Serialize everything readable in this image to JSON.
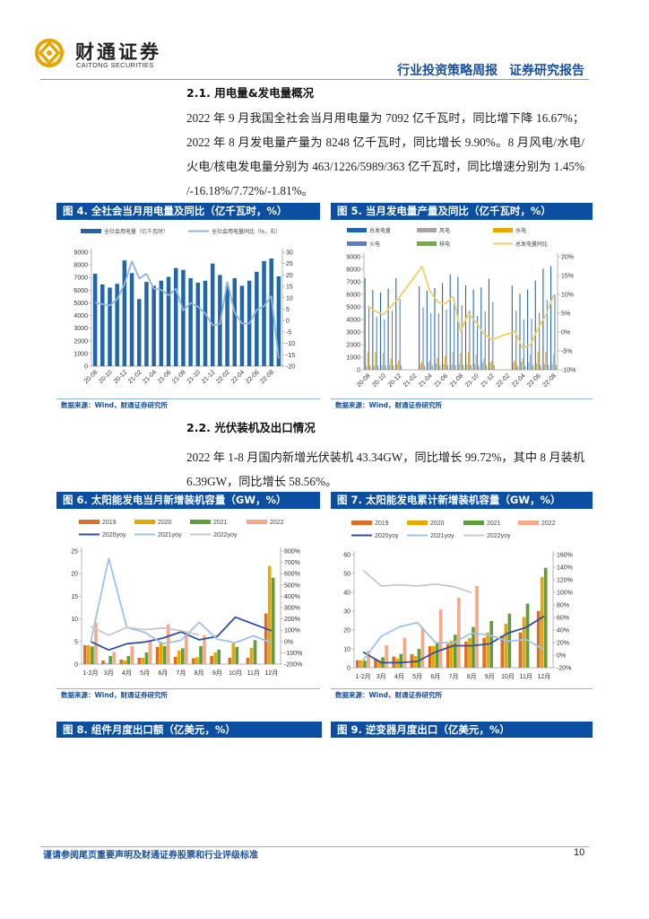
{
  "header": {
    "logo_cn": "财通证券",
    "logo_en": "CAITONG SECURITIES",
    "report_type": "行业投资策略周报",
    "report_category": "证券研究报告",
    "brand_color": "#e8a500",
    "accent_color": "#0b4ea2"
  },
  "section_1": {
    "heading": "2.1.  用电量&发电量概况",
    "paragraph": "2022 年 9 月我国全社会当月用电量为 7092 亿千瓦时，同比增下降 16.67%；2022 年 8 月发电量产量为 8248 亿千瓦时，同比增长 9.90%。8 月风电/水电/火电/核电发电量分别为 463/1226/5989/363 亿千瓦时，同比增速分别为 1.45% /-16.18%/7.72%/-1.81%。"
  },
  "section_2": {
    "heading": "2.2.  光伏装机及出口情况",
    "paragraph": "2022 年 1-8 月国内新增光伏装机 43.34GW，同比增长 99.72%，其中 8 月装机 6.39GW，同比增长 58.56%。"
  },
  "figures": {
    "fig4_title": "图 4.  全社会当月用电量及同比（亿千瓦时，%）",
    "fig5_title": "图 5.  当月发电量产量及同比（亿千瓦时，%）",
    "fig6_title": "图 6.  太阳能发电当月新增装机容量（GW，%）",
    "fig7_title": "图 7.  太阳能发电累计新增装机容量（GW，%）",
    "fig8_title": "图 8.  组件月度出口额（亿美元，%）",
    "fig9_title": "图 9.  逆变器月度出口（亿美元，%）",
    "source": "数据来源：Wind，财通证券研究所"
  },
  "chart_data": [
    {
      "type": "bar+line",
      "categories": [
        "20-08",
        "20-09",
        "20-10",
        "20-11",
        "20-12",
        "21-01",
        "21-02",
        "21-03",
        "21-04",
        "21-05",
        "21-06",
        "21-07",
        "21-08",
        "21-09",
        "21-10",
        "21-11",
        "21-12",
        "22-01",
        "22-02",
        "22-03",
        "22-04",
        "22-05",
        "22-06",
        "22-07",
        "22-08",
        "22-09"
      ],
      "ylim": [
        0,
        9000
      ],
      "y2lim": [
        -20,
        30
      ],
      "ytick_labels": [
        "0",
        "1000",
        "2000",
        "3000",
        "4000",
        "5000",
        "6000",
        "7000",
        "8000",
        "9000"
      ],
      "y2tick_labels": [
        "-20",
        "-15",
        "-10",
        "-5",
        "0",
        "5",
        "10",
        "15",
        "20",
        "25",
        "30"
      ],
      "bar_series": [
        {
          "name": "全社会用电量（亿千瓦时）",
          "color": "#2166a8",
          "values": [
            7300,
            6450,
            6200,
            6500,
            8350,
            7350,
            5300,
            6650,
            6350,
            6750,
            7050,
            7750,
            7600,
            6950,
            6600,
            6750,
            8100,
            7200,
            6300,
            6950,
            6350,
            6750,
            7450,
            8300,
            8500,
            7092
          ]
        }
      ],
      "line_series": [
        {
          "name": "全社会用电量同比（%，右）",
          "color": "#8db4e2",
          "values": [
            7.8,
            7.2,
            6.6,
            9.4,
            16,
            26,
            18.5,
            20.5,
            14,
            13.5,
            11,
            14,
            4.5,
            7.7,
            6.1,
            3.1,
            -2,
            -1.5,
            17,
            3.5,
            -1.3,
            -1.3,
            4.7,
            6.3,
            10.7,
            -16.67
          ]
        }
      ],
      "grid": false,
      "legend": "top"
    },
    {
      "type": "bar+line",
      "categories": [
        "20-08",
        "20-09",
        "20-10",
        "20-11",
        "20-12",
        "21-01",
        "21-02",
        "21-03",
        "21-04",
        "21-05",
        "21-06",
        "21-07",
        "21-08",
        "21-09",
        "21-10",
        "21-11",
        "21-12",
        "22-01",
        "22-02",
        "22-03",
        "22-04",
        "22-05",
        "22-06",
        "22-07",
        "22-08"
      ],
      "ylim": [
        0,
        9000
      ],
      "y2lim": [
        -10,
        20
      ],
      "ytick_labels": [
        "0",
        "1000",
        "2000",
        "3000",
        "4000",
        "5000",
        "6000",
        "7000",
        "8000",
        "9000"
      ],
      "y2tick_labels": [
        "-10%",
        "-5%",
        "0%",
        "5%",
        "10%",
        "15%",
        "20%"
      ],
      "bar_series": [
        {
          "name": "总发电量",
          "color": "#2166ac",
          "values": [
            7300,
            6350,
            6150,
            6450,
            7300,
            null,
            null,
            6650,
            6300,
            6500,
            6900,
            7600,
            7400,
            6750,
            6400,
            6550,
            7250,
            null,
            null,
            6700,
            6050,
            6400,
            7100,
            8050,
            8248
          ]
        },
        {
          "name": "风电",
          "color": "#a5a5a5",
          "values": [
            300,
            330,
            380,
            400,
            420,
            null,
            null,
            480,
            560,
            500,
            450,
            390,
            420,
            430,
            480,
            560,
            580,
            null,
            null,
            600,
            640,
            580,
            500,
            420,
            463
          ]
        },
        {
          "name": "水电",
          "color": "#e8a800",
          "values": [
            1400,
            1380,
            1330,
            900,
            750,
            null,
            null,
            620,
            750,
            950,
            1100,
            1400,
            1350,
            1400,
            1200,
            880,
            700,
            null,
            null,
            760,
            900,
            1200,
            1450,
            1450,
            1226
          ]
        },
        {
          "name": "火电",
          "color": "#5b7fc7",
          "values": [
            5100,
            4200,
            4000,
            4700,
            5650,
            null,
            null,
            4950,
            4500,
            4500,
            4800,
            5700,
            5150,
            4700,
            4300,
            4650,
            5400,
            null,
            null,
            4700,
            4000,
            4050,
            4550,
            5550,
            5989
          ]
        },
        {
          "name": "核电",
          "color": "#70ad47",
          "values": [
            330,
            320,
            330,
            330,
            350,
            null,
            null,
            330,
            340,
            350,
            350,
            360,
            370,
            350,
            340,
            350,
            370,
            null,
            null,
            340,
            320,
            340,
            350,
            370,
            363
          ]
        }
      ],
      "line_series": [
        {
          "name": "总发电量同比",
          "color": "#f0d060",
          "values": [
            6.8,
            5.5,
            4.6,
            6.8,
            9.0,
            null,
            null,
            17.4,
            11,
            8,
            7.5,
            9.5,
            0.2,
            5,
            2.5,
            -0.5,
            -2,
            null,
            null,
            0.2,
            -4.3,
            -3.3,
            1,
            4.5,
            9.9
          ]
        }
      ],
      "grid": false,
      "legend": "top"
    },
    {
      "type": "bar+line",
      "categories": [
        "1-2月",
        "3月",
        "4月",
        "5月",
        "6月",
        "7月",
        "8月",
        "9月",
        "10月",
        "11月",
        "12月"
      ],
      "ylim": [
        0,
        25
      ],
      "y2lim": [
        -200,
        800
      ],
      "ytick_labels": [
        "0",
        "5",
        "10",
        "15",
        "20",
        "25"
      ],
      "y2tick_labels": [
        "-200%",
        "-100%",
        "0%",
        "100%",
        "200%",
        "300%",
        "400%",
        "500%",
        "600%",
        "700%",
        "800%"
      ],
      "bar_series": [
        {
          "name": "2019",
          "color": "#d9702a",
          "values": [
            4.2,
            0.8,
            1.0,
            1.4,
            3.8,
            1.6,
            1.3,
            1.8,
            1.4,
            1.4,
            11.2
          ]
        },
        {
          "name": "2020",
          "color": "#e8a800",
          "values": [
            4.2,
            0.2,
            0.8,
            1.4,
            4.9,
            3.0,
            1.5,
            2.6,
            4.6,
            3.6,
            21.7
          ]
        },
        {
          "name": "2021",
          "color": "#5f9e3c",
          "values": [
            3.9,
            1.8,
            1.8,
            2.6,
            4.0,
            3.5,
            4.0,
            3.2,
            3.8,
            5.3,
            19.1
          ]
        },
        {
          "name": "2022",
          "color": "#f4a98a",
          "values": [
            9.2,
            2.7,
            4.0,
            5.2,
            8.8,
            6.9,
            6.39,
            null,
            null,
            null,
            null
          ]
        }
      ],
      "line_series": [
        {
          "name": "2020yoy",
          "color": "#2f4fa0",
          "values": [
            0,
            -75,
            -20,
            -5,
            30,
            85,
            15,
            45,
            215,
            155,
            95
          ]
        },
        {
          "name": "2021yoy",
          "color": "#9ec3e8",
          "values": [
            -5,
            735,
            125,
            80,
            -20,
            10,
            170,
            20,
            -10,
            50,
            -10
          ]
        },
        {
          "name": "2022yoy",
          "color": "#c8c8c8",
          "values": [
            135,
            55,
            125,
            105,
            120,
            95,
            58.56,
            null,
            null,
            null,
            null
          ]
        }
      ],
      "grid": false,
      "legend": "top"
    },
    {
      "type": "bar+line",
      "categories": [
        "1-2月",
        "3月",
        "4月",
        "5月",
        "6月",
        "7月",
        "8月",
        "9月",
        "10月",
        "11月",
        "12月"
      ],
      "ylim": [
        0,
        60
      ],
      "y2lim": [
        -20,
        160
      ],
      "ytick_labels": [
        "0",
        "10",
        "20",
        "30",
        "40",
        "50",
        "60"
      ],
      "y2tick_labels": [
        "-20%",
        "0%",
        "20%",
        "40%",
        "60%",
        "80%",
        "100%",
        "120%",
        "140%",
        "160%"
      ],
      "bar_series": [
        {
          "name": "2019",
          "color": "#d9702a",
          "values": [
            4.0,
            4.8,
            5.9,
            7.2,
            11.4,
            12.6,
            13.9,
            15.9,
            17.1,
            18.7,
            30.1
          ]
        },
        {
          "name": "2020",
          "color": "#e8a800",
          "values": [
            4.0,
            4.0,
            4.8,
            6.2,
            11.5,
            14.4,
            15.8,
            18.7,
            23.3,
            26.9,
            48.2
          ]
        },
        {
          "name": "2021",
          "color": "#5f9e3c",
          "values": [
            3.7,
            5.5,
            7.3,
            10.0,
            13.0,
            17.5,
            21.6,
            24.8,
            28.7,
            34.0,
            53.0
          ]
        },
        {
          "name": "2022",
          "color": "#f4a98a",
          "values": [
            9.0,
            11.9,
            15.9,
            21.2,
            30.9,
            37.1,
            43.34,
            null,
            null,
            null,
            null
          ]
        }
      ],
      "line_series": [
        {
          "name": "2020yoy",
          "color": "#2f4fa0",
          "values": [
            5,
            -12,
            -12,
            -10,
            5,
            15,
            15,
            18,
            35,
            44,
            62
          ]
        },
        {
          "name": "2021yoy",
          "color": "#9ec3e8",
          "values": [
            -8,
            30,
            45,
            52,
            20,
            20,
            35,
            32,
            22,
            25,
            9
          ]
        },
        {
          "name": "2022yoy",
          "color": "#c8c8c8",
          "values": [
            135,
            110,
            112,
            110,
            113,
            109,
            99.72,
            null,
            null,
            null,
            null
          ]
        }
      ],
      "grid": false,
      "legend": "top"
    }
  ],
  "footer": {
    "disclaimer": "谨请参阅尾页重要声明及财通证券股票和行业评级标准",
    "page_number": "10"
  }
}
